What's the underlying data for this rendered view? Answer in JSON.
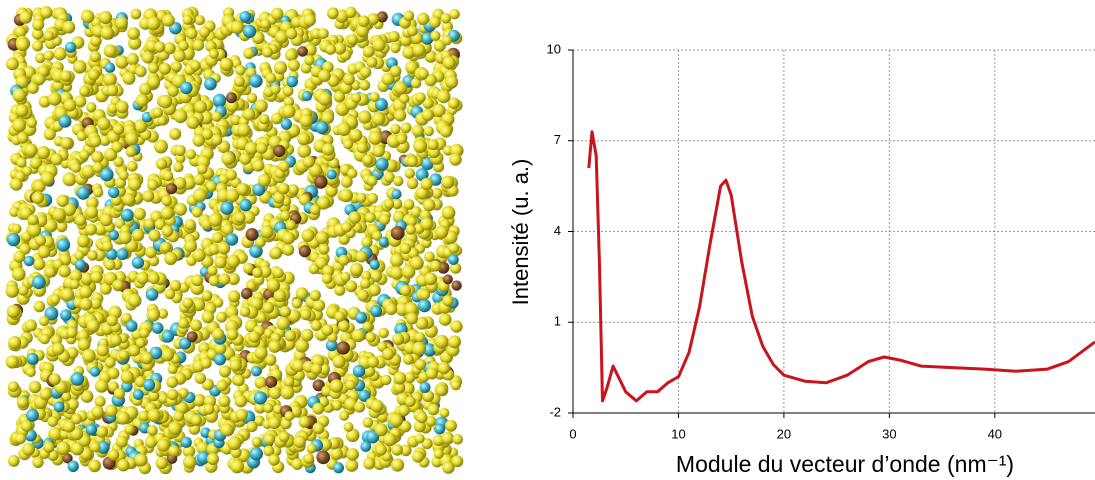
{
  "chart_data": {
    "type": "line",
    "xlabel": "Module du vecteur d’onde (nm⁻¹)",
    "ylabel": "Intensité (u. a.)",
    "x": [
      1.5,
      1.8,
      2.2,
      2.5,
      2.8,
      3.2,
      3.8,
      4.3,
      5,
      6,
      7,
      8,
      9,
      10,
      11,
      12,
      13,
      14,
      14.5,
      15,
      16,
      17,
      18,
      19,
      20,
      22,
      24,
      26,
      28,
      29.5,
      31,
      33,
      36,
      39,
      42,
      45,
      47,
      49.5
    ],
    "values": [
      6.1,
      7.3,
      6.5,
      3,
      -1.6,
      -1.2,
      -0.45,
      -0.8,
      -1.3,
      -1.6,
      -1.3,
      -1.3,
      -1.0,
      -0.8,
      0,
      1.5,
      3.6,
      5.5,
      5.7,
      5.2,
      3,
      1.2,
      0.2,
      -0.4,
      -0.75,
      -0.95,
      -1.0,
      -0.75,
      -0.3,
      -0.15,
      -0.25,
      -0.45,
      -0.5,
      -0.55,
      -0.62,
      -0.55,
      -0.3,
      0.35
    ],
    "color": "#c8141c",
    "xlim": [
      0,
      49.5
    ],
    "xticks": [
      0,
      10,
      20,
      30,
      40
    ],
    "ylim": [
      -2,
      10
    ],
    "yticks": [
      -2,
      1,
      4,
      7,
      10
    ],
    "grid": true
  }
}
